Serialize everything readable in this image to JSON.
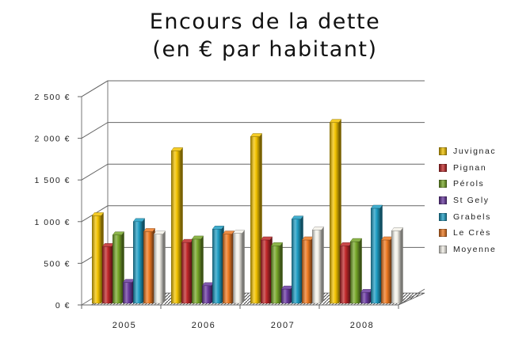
{
  "chart_data": {
    "type": "bar",
    "title": "Encours de la dette",
    "subtitle": "(en € par habitant)",
    "categories": [
      "2005",
      "2006",
      "2007",
      "2008"
    ],
    "ylim": [
      0,
      2500
    ],
    "yticks": [
      "0 €",
      "500 €",
      "1 000 €",
      "1 500 €",
      "2 000 €",
      "2 500 €"
    ],
    "grid": true,
    "legend_position": "right",
    "series": [
      {
        "name": "Juvignac",
        "color": "#f2c200",
        "values": [
          1070,
          1850,
          2020,
          2190
        ]
      },
      {
        "name": "Pignan",
        "color": "#c0282a",
        "values": [
          700,
          750,
          780,
          710
        ]
      },
      {
        "name": "Pérols",
        "color": "#78a82a",
        "values": [
          840,
          790,
          710,
          760
        ]
      },
      {
        "name": "St Gely",
        "color": "#6a3aa0",
        "values": [
          270,
          230,
          190,
          150
        ]
      },
      {
        "name": "Grabels",
        "color": "#1f9ec4",
        "values": [
          1000,
          910,
          1030,
          1160
        ]
      },
      {
        "name": "Le Crès",
        "color": "#ee7a22",
        "values": [
          880,
          850,
          780,
          780
        ]
      },
      {
        "name": "Moyenne",
        "color": "#f4f2ea",
        "values": [
          850,
          860,
          900,
          890
        ]
      }
    ]
  }
}
